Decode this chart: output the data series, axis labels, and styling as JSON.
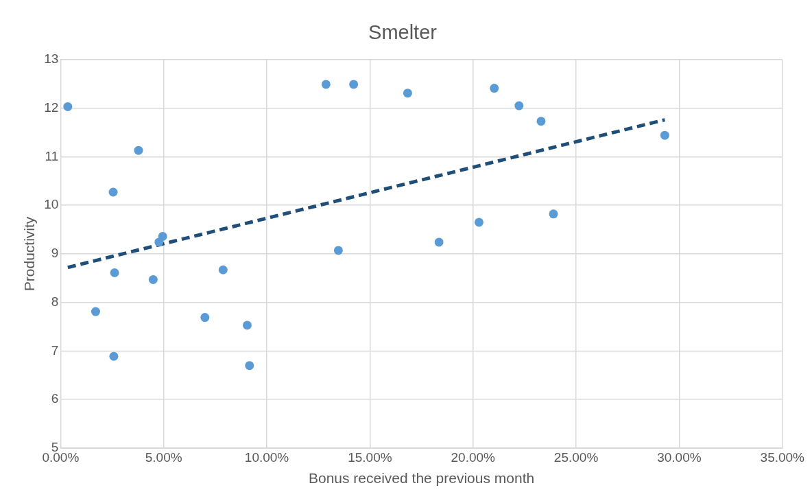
{
  "chart_data": {
    "type": "scatter",
    "title": "Smelter",
    "xlabel": "Bonus received the previous month",
    "ylabel": "Productivity",
    "xlim": [
      0,
      35
    ],
    "xticks": [
      {
        "value": 0,
        "label": "0.00%"
      },
      {
        "value": 5,
        "label": "5.00%"
      },
      {
        "value": 10,
        "label": "10.00%"
      },
      {
        "value": 15,
        "label": "15.00%"
      },
      {
        "value": 20,
        "label": "20.00%"
      },
      {
        "value": 25,
        "label": "25.00%"
      },
      {
        "value": 30,
        "label": "30.00%"
      },
      {
        "value": 35,
        "label": "35.00%"
      }
    ],
    "ylim": [
      5,
      13
    ],
    "yticks": [
      5,
      6,
      7,
      8,
      9,
      10,
      11,
      12,
      13
    ],
    "grid": true,
    "series": [
      {
        "type": "scatter",
        "marker": "circle",
        "color": "#5b9bd5",
        "x": [
          0.35,
          1.7,
          2.55,
          2.62,
          2.58,
          3.78,
          4.49,
          4.77,
          4.95,
          7.0,
          7.88,
          9.05,
          9.16,
          12.87,
          13.47,
          14.21,
          16.83,
          18.35,
          20.29,
          21.03,
          22.23,
          23.3,
          23.9,
          29.3
        ],
        "values": [
          12.03,
          7.81,
          10.27,
          8.61,
          6.89,
          11.13,
          8.47,
          9.24,
          9.36,
          7.69,
          8.67,
          7.53,
          6.7,
          12.49,
          9.07,
          12.49,
          12.31,
          9.24,
          9.65,
          12.41,
          12.05,
          11.73,
          9.82,
          11.44
        ]
      },
      {
        "type": "line",
        "color": "#1f4e79",
        "line_style": "dashed",
        "x": [
          0.35,
          29.3
        ],
        "values": [
          8.72,
          11.76
        ]
      }
    ]
  }
}
